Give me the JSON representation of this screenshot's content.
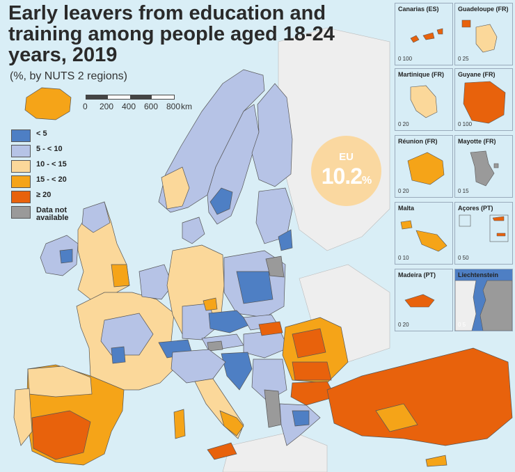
{
  "title": "Early leavers from education and training among people aged 18-24 years, 2019",
  "subtitle": "(%, by NUTS 2 regions)",
  "scale": {
    "labels": [
      "0",
      "200",
      "400",
      "600",
      "800"
    ],
    "unit": "km"
  },
  "legend": [
    {
      "label": "< 5",
      "color": "#4e7fc4"
    },
    {
      "label": "5 - < 10",
      "color": "#b6c3e6"
    },
    {
      "label": "10 - < 15",
      "color": "#fbd89a"
    },
    {
      "label": "15 - < 20",
      "color": "#f5a418"
    },
    {
      "label": "≥ 20",
      "color": "#e8620c"
    },
    {
      "label": "Data not\navailable",
      "color": "#9a9a9a"
    }
  ],
  "eu_badge": {
    "label": "EU",
    "value": "10.2",
    "unit": "%"
  },
  "insets": [
    {
      "title": "Canarias (ES)",
      "scale": "0   100"
    },
    {
      "title": "Guadeloupe (FR)",
      "scale": "0   25"
    },
    {
      "title": "Martinique (FR)",
      "scale": "0   20"
    },
    {
      "title": "Guyane (FR)",
      "scale": "0   100"
    },
    {
      "title": "Réunion (FR)",
      "scale": "0   20"
    },
    {
      "title": "Mayotte (FR)",
      "scale": "0   15"
    },
    {
      "title": "Malta",
      "scale": "0   10"
    },
    {
      "title": "Açores (PT)",
      "scale": "0   50"
    },
    {
      "title": "Madeira (PT)",
      "scale": "0   20"
    },
    {
      "title": "Liechtenstein",
      "scale": "0   5"
    }
  ],
  "colors": {
    "sea": "#d9eef6",
    "land_outside": "#eeeeee",
    "border": "#555555"
  }
}
